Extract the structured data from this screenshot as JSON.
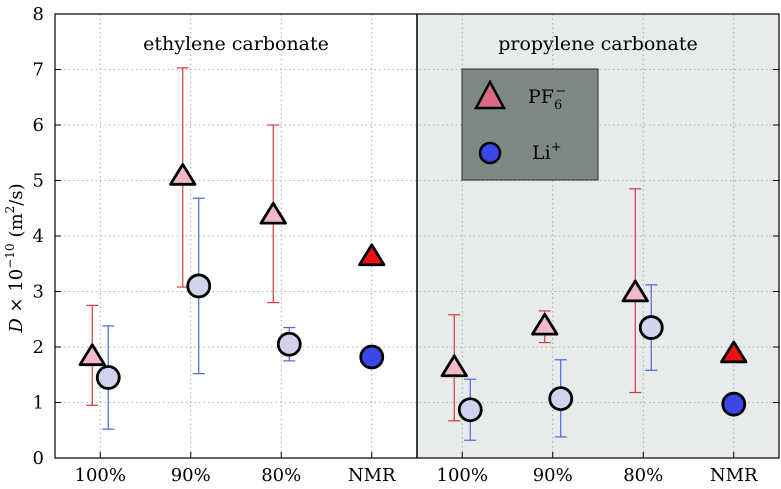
{
  "chart_data": {
    "type": "scatter",
    "ylabel": {
      "var": "D",
      "mid": " × 10",
      "exp": "−10",
      "unit_open": "(m",
      "unit_exp": "2",
      "unit_close": "/s)"
    },
    "ylim": [
      0,
      8
    ],
    "yticks": [
      0,
      1,
      2,
      3,
      4,
      5,
      6,
      7,
      8
    ],
    "grid": true,
    "legend": {
      "placement": "top-left of right panel",
      "entries": [
        {
          "name": "PF6-",
          "base": "PF",
          "sub": "6",
          "sup": "−",
          "marker": "triangle"
        },
        {
          "name": "Li+",
          "base": "Li",
          "sup": "+",
          "marker": "circle"
        }
      ]
    },
    "colors": {
      "pf6_sim": "#f2b8c8",
      "li_sim": "#d0d2ee",
      "pf6_nmr": "#ee1111",
      "li_nmr": "#3b47e6",
      "pf6_error": "#d63a3a",
      "li_error": "#4a66d8",
      "right_panel_bg": "#e8ebeb",
      "legend_bg": "#7e8985"
    },
    "panels": [
      {
        "title": "ethylene carbonate",
        "categories": [
          "100%",
          "90%",
          "80%",
          "NMR"
        ],
        "series": [
          {
            "name": "PF6-",
            "values": [
              1.85,
              5.1,
              4.4,
              3.65
            ],
            "err_low": [
              0.95,
              3.08,
              2.8,
              null
            ],
            "err_high": [
              2.75,
              7.03,
              6.0,
              null
            ]
          },
          {
            "name": "Li+",
            "values": [
              1.45,
              3.1,
              2.05,
              1.82
            ],
            "err_low": [
              0.52,
              1.52,
              1.75,
              null
            ],
            "err_high": [
              2.38,
              4.68,
              2.35,
              null
            ]
          }
        ]
      },
      {
        "title": "propylene carbonate",
        "categories": [
          "100%",
          "90%",
          "80%",
          "NMR"
        ],
        "series": [
          {
            "name": "PF6-",
            "values": [
              1.65,
              2.4,
              3.0,
              1.9
            ],
            "err_low": [
              0.67,
              2.08,
              1.18,
              null
            ],
            "err_high": [
              2.58,
              2.65,
              4.85,
              null
            ]
          },
          {
            "name": "Li+",
            "values": [
              0.87,
              1.07,
              2.35,
              0.97
            ],
            "err_low": [
              0.32,
              0.38,
              1.58,
              null
            ],
            "err_high": [
              1.42,
              1.77,
              3.12,
              null
            ]
          }
        ]
      }
    ]
  }
}
